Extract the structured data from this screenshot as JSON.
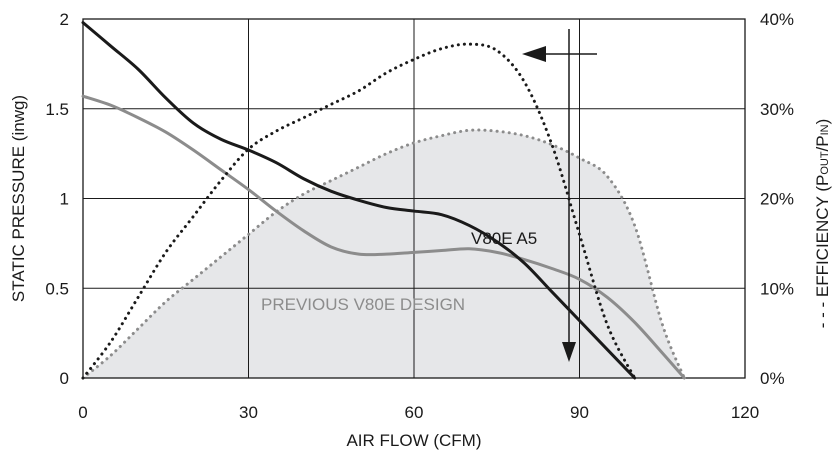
{
  "chart_data": {
    "type": "line",
    "xlabel": "AIR FLOW (CFM)",
    "ylabel_left": "STATIC PRESSURE (inwg)",
    "ylabel_right": {
      "prefix": "- - - EFFICIENCY (P",
      "sub1": "OUT",
      "mid": "/P",
      "sub2": "IN",
      "suffix": ")"
    },
    "xlim": [
      0,
      120
    ],
    "ylim_left": [
      0,
      2
    ],
    "ylim_right": [
      0,
      40
    ],
    "x_ticks": [
      "0",
      "30",
      "60",
      "90",
      "120"
    ],
    "y_ticks_left": [
      "0",
      "0.5",
      "1",
      "1.5",
      "2"
    ],
    "y_ticks_right": [
      "0%",
      "10%",
      "20%",
      "30%",
      "40%"
    ],
    "grid": true,
    "annotations": {
      "v80e_label": "V80E A5",
      "previous_label": "PREVIOUS V80E DESIGN"
    },
    "colors": {
      "v80e": "#1a1a1a",
      "previous": "#8c8c8c",
      "fill": "#e6e7e9",
      "grid": "#1a1a1a"
    },
    "series": [
      {
        "name": "V80E A5",
        "axis": "left",
        "style": "solid",
        "x": [
          0,
          5,
          10,
          15,
          20,
          25,
          30,
          35,
          40,
          45,
          50,
          55,
          60,
          65,
          70,
          75,
          80,
          85,
          90,
          95,
          100
        ],
        "y": [
          1.98,
          1.85,
          1.72,
          1.56,
          1.42,
          1.33,
          1.27,
          1.2,
          1.11,
          1.04,
          0.99,
          0.95,
          0.93,
          0.91,
          0.85,
          0.76,
          0.64,
          0.48,
          0.32,
          0.16,
          0
        ]
      },
      {
        "name": "PREVIOUS V80E DESIGN",
        "axis": "left",
        "style": "solid",
        "x": [
          0,
          5,
          10,
          15,
          20,
          25,
          30,
          35,
          40,
          45,
          50,
          55,
          60,
          65,
          70,
          75,
          80,
          85,
          90,
          95,
          100,
          105,
          109
        ],
        "y": [
          1.57,
          1.52,
          1.45,
          1.37,
          1.27,
          1.16,
          1.05,
          0.93,
          0.82,
          0.73,
          0.69,
          0.69,
          0.7,
          0.71,
          0.72,
          0.7,
          0.66,
          0.61,
          0.55,
          0.45,
          0.31,
          0.14,
          0
        ]
      },
      {
        "name": "V80E A5 efficiency",
        "axis": "right",
        "style": "dotted",
        "x": [
          0,
          5,
          10,
          15,
          20,
          25,
          30,
          35,
          40,
          45,
          50,
          55,
          60,
          65,
          70,
          75,
          80,
          85,
          90,
          95,
          100
        ],
        "y": [
          0,
          4,
          9,
          14,
          18,
          22,
          25.5,
          27.5,
          29,
          30.5,
          32,
          34,
          35.5,
          36.7,
          37.2,
          36.5,
          33,
          26,
          16,
          6,
          0
        ]
      },
      {
        "name": "Previous efficiency",
        "axis": "right",
        "style": "dotted",
        "x": [
          0,
          5,
          10,
          15,
          20,
          25,
          30,
          35,
          40,
          45,
          50,
          55,
          60,
          65,
          70,
          75,
          80,
          85,
          90,
          95,
          100,
          105,
          109
        ],
        "y": [
          0,
          2.5,
          5.5,
          8.5,
          11,
          13.5,
          16,
          18.5,
          20.5,
          22,
          23.5,
          25,
          26.2,
          27,
          27.6,
          27.5,
          27,
          26,
          24.5,
          22.5,
          17,
          6,
          0
        ]
      }
    ]
  }
}
